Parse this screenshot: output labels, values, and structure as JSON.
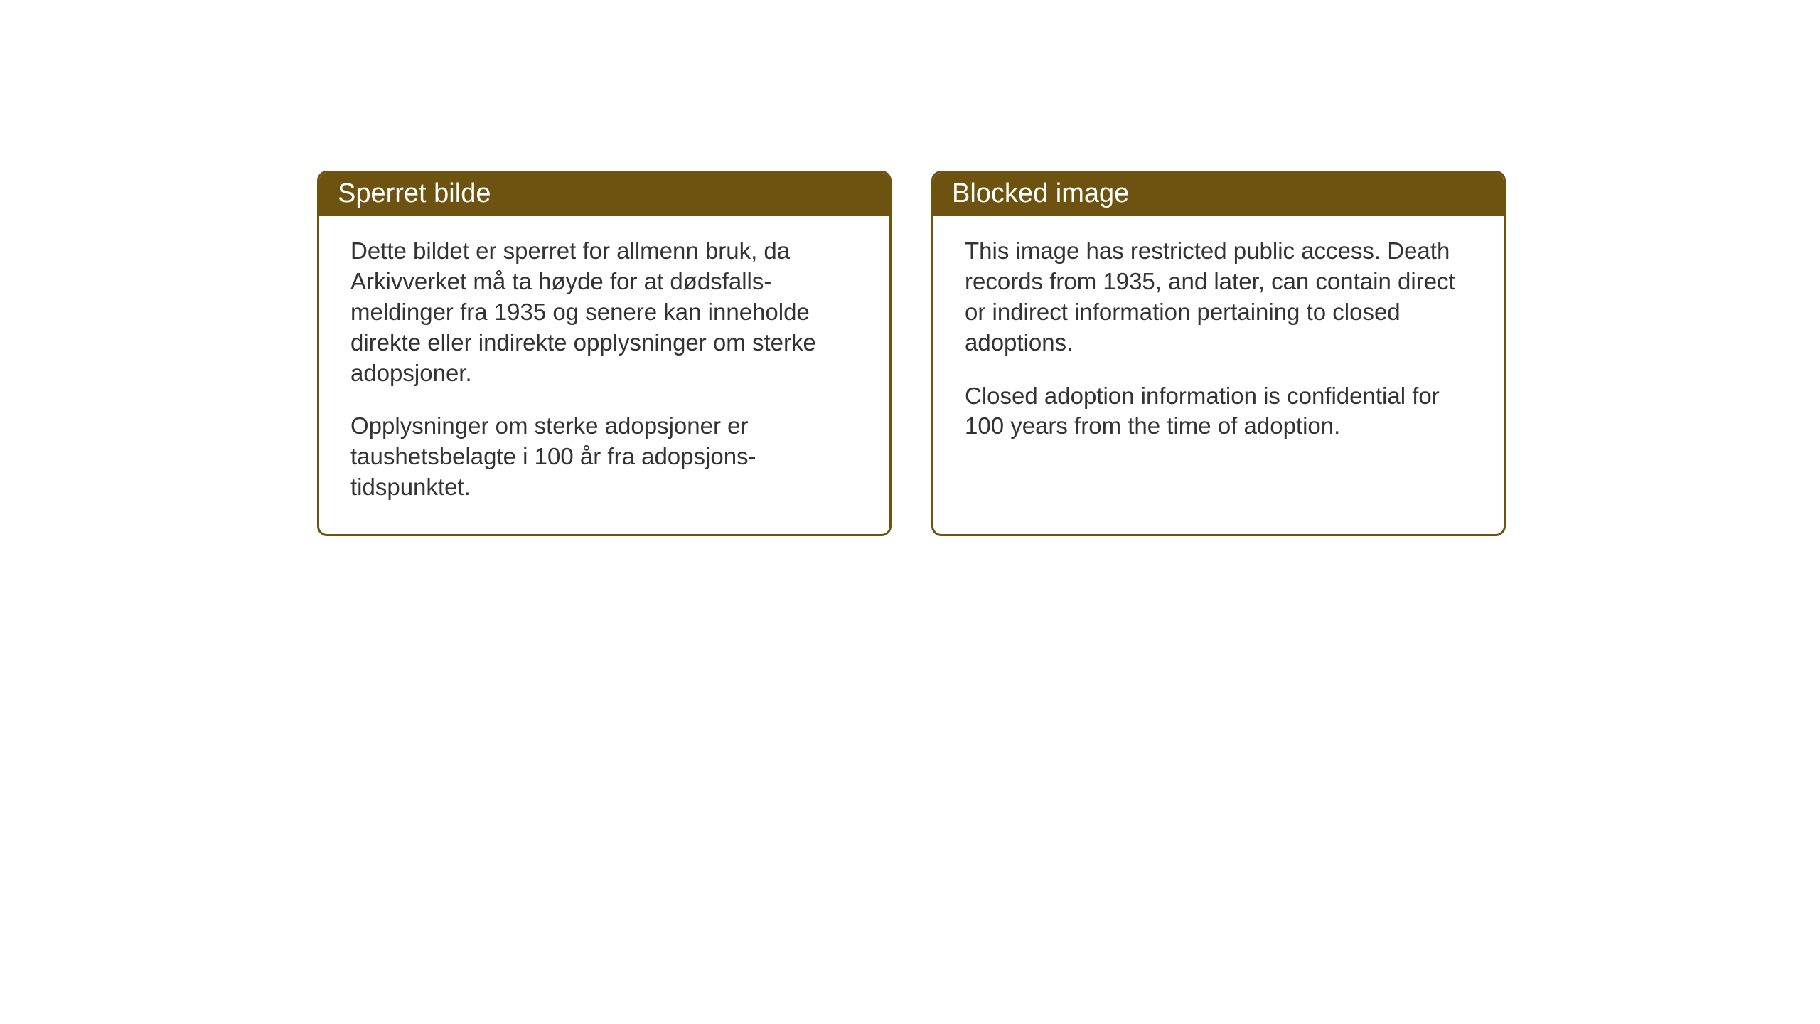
{
  "page": {
    "background_color": "#ffffff"
  },
  "notices": {
    "norwegian": {
      "title": "Sperret bilde",
      "paragraph1": "Dette bildet er sperret for allmenn bruk, da Arkivverket må ta høyde for at dødsfalls-meldinger fra 1935 og senere kan inneholde direkte eller indirekte opplysninger om sterke adopsjoner.",
      "paragraph2": "Opplysninger om sterke adopsjoner er taushetsbelagte i 100 år fra adopsjons-tidspunktet."
    },
    "english": {
      "title": "Blocked image",
      "paragraph1": "This image has restricted public access. Death records from 1935, and later, can contain direct or indirect information pertaining to closed adoptions.",
      "paragraph2": "Closed adoption information is confidential for 100 years from the time of adoption."
    }
  },
  "styling": {
    "header_background": "#6e5310",
    "header_text_color": "#ffffff",
    "border_color": "#6e5310",
    "body_text_color": "#333333",
    "box_background": "#ffffff",
    "border_radius": 14,
    "border_width": 3,
    "title_fontsize": 38,
    "body_fontsize": 33
  }
}
